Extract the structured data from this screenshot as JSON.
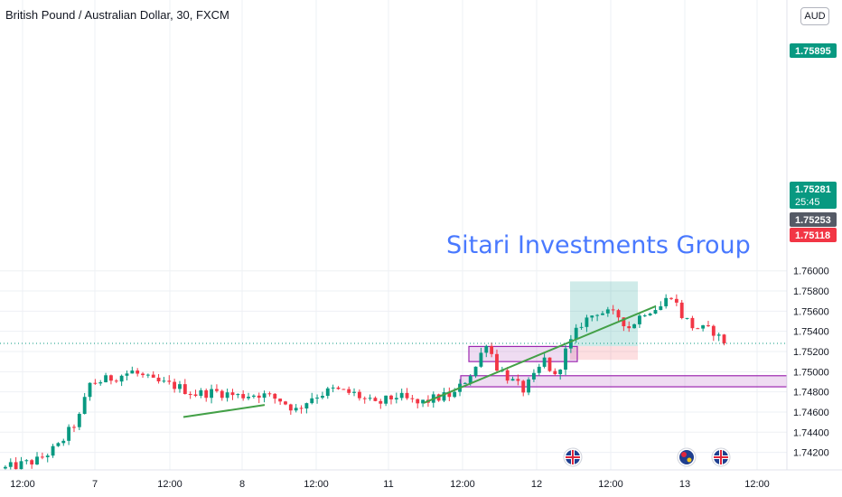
{
  "header": {
    "title": "British Pound / Australian Dollar, 30, FXCM",
    "currency": "AUD"
  },
  "watermark": "Sitari Investments Group",
  "chart_data": {
    "type": "candlestick",
    "title": "British Pound / Australian Dollar, 30, FXCM",
    "y_ticks": [
      1.742,
      1.744,
      1.746,
      1.748,
      1.75,
      1.752,
      1.754,
      1.756,
      1.758,
      1.76
    ],
    "y_tick_labels": [
      "1.74200",
      "1.74400",
      "1.74600",
      "1.74800",
      "1.75000",
      "1.75200",
      "1.75400",
      "1.75600",
      "1.75800",
      "1.76000"
    ],
    "ylim": [
      1.7405,
      1.7618
    ],
    "x_tick_labels": [
      "12:00",
      "7",
      "12:00",
      "8",
      "12:00",
      "11",
      "12:00",
      "12",
      "12:00",
      "13",
      "12:00"
    ],
    "grid": true,
    "price_tags": [
      {
        "value": "1.75895",
        "color": "#089981"
      },
      {
        "value": "1.75281",
        "countdown": "25:45",
        "color": "#089981"
      },
      {
        "value": "1.75253",
        "color": "#555a66"
      },
      {
        "value": "1.75118",
        "color": "#f23645"
      }
    ],
    "current_price": 1.75281,
    "position": {
      "entry": 1.75253,
      "target": 1.75895,
      "stop": 1.75118
    },
    "zones": [
      {
        "top": 1.7525,
        "bottom": 1.751,
        "color": "#9c27b0"
      },
      {
        "top": 1.7496,
        "bottom": 1.7485,
        "color": "#9c27b0"
      }
    ],
    "trendlines": [
      {
        "from": 1.7455,
        "to": 1.7467,
        "color": "#43a047"
      },
      {
        "from": 1.7469,
        "to": 1.7565,
        "color": "#43a047"
      }
    ],
    "event_markers": [
      "uk-flag",
      "australia-flag",
      "uk-flag"
    ],
    "candle_path": [
      [
        0,
        1.7404
      ],
      [
        6,
        1.7412
      ],
      [
        10,
        1.7426
      ],
      [
        14,
        1.7455
      ],
      [
        16,
        1.7488
      ],
      [
        19,
        1.7492
      ],
      [
        24,
        1.75
      ],
      [
        28,
        1.749
      ],
      [
        32,
        1.7486
      ],
      [
        36,
        1.7478
      ],
      [
        40,
        1.748
      ],
      [
        44,
        1.7476
      ],
      [
        48,
        1.7478
      ],
      [
        52,
        1.7472
      ],
      [
        55,
        1.7462
      ],
      [
        58,
        1.7475
      ],
      [
        62,
        1.7482
      ],
      [
        66,
        1.7478
      ],
      [
        70,
        1.7467
      ],
      [
        74,
        1.7476
      ],
      [
        78,
        1.7468
      ],
      [
        81,
        1.7473
      ],
      [
        85,
        1.7478
      ],
      [
        89,
        1.7505
      ],
      [
        91,
        1.753
      ],
      [
        93,
        1.7505
      ],
      [
        96,
        1.749
      ],
      [
        98,
        1.7482
      ],
      [
        100,
        1.7494
      ],
      [
        102,
        1.7512
      ],
      [
        104,
        1.7494
      ],
      [
        106,
        1.752
      ],
      [
        109,
        1.7548
      ],
      [
        112,
        1.756
      ],
      [
        116,
        1.7555
      ],
      [
        118,
        1.7544
      ],
      [
        121,
        1.756
      ],
      [
        124,
        1.7565
      ],
      [
        126,
        1.7577
      ],
      [
        128,
        1.7556
      ],
      [
        130,
        1.7545
      ],
      [
        132,
        1.7542
      ],
      [
        134,
        1.754
      ],
      [
        136,
        1.7528
      ]
    ]
  }
}
